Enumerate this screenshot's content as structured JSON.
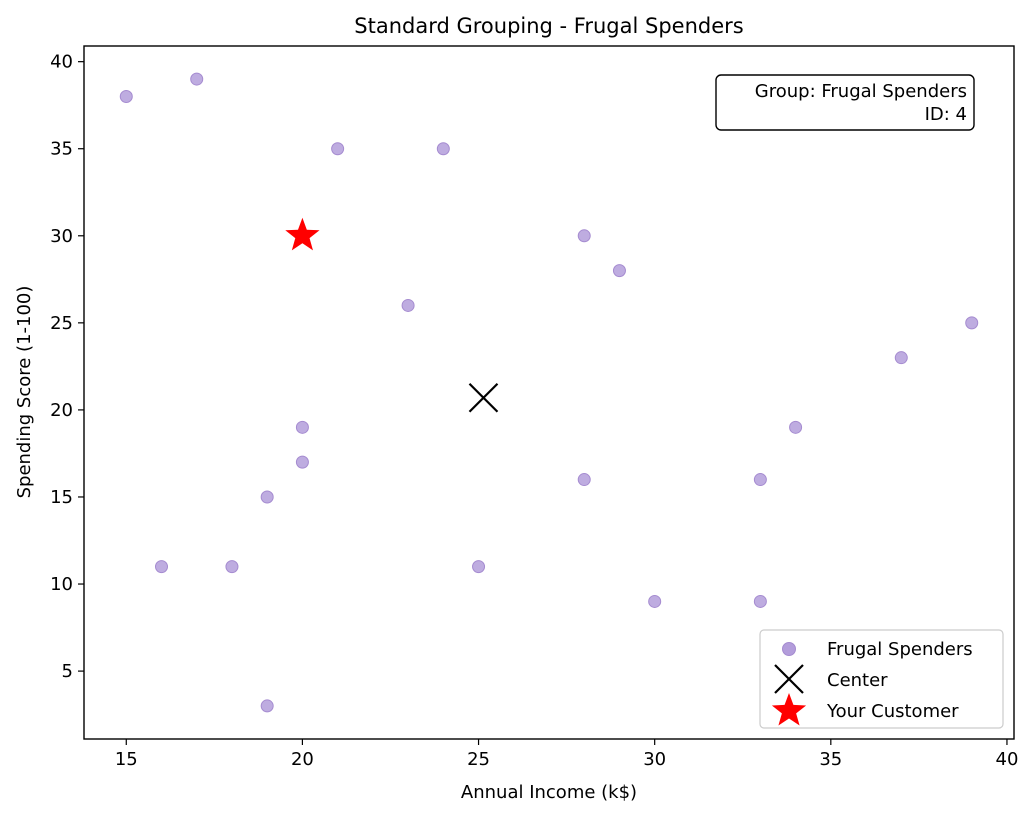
{
  "chart_data": {
    "type": "scatter",
    "title": "Standard Grouping - Frugal Spenders",
    "xlabel": "Annual Income (k$)",
    "ylabel": "Spending Score (1-100)",
    "xlim": [
      13.8,
      40.2
    ],
    "ylim": [
      1.1,
      40.9
    ],
    "xticks": [
      15,
      20,
      25,
      30,
      35,
      40
    ],
    "yticks": [
      5,
      10,
      15,
      20,
      25,
      30,
      35,
      40
    ],
    "grid": false,
    "legend_position": "bottom-right",
    "series": [
      {
        "name": "Frugal Spenders",
        "marker": "circle",
        "color": "#b39ddb",
        "points": [
          {
            "x": 15,
            "y": 38
          },
          {
            "x": 17,
            "y": 39
          },
          {
            "x": 21,
            "y": 35
          },
          {
            "x": 24,
            "y": 35
          },
          {
            "x": 28,
            "y": 30
          },
          {
            "x": 29,
            "y": 28
          },
          {
            "x": 23,
            "y": 26
          },
          {
            "x": 39,
            "y": 25
          },
          {
            "x": 37,
            "y": 23
          },
          {
            "x": 20,
            "y": 19
          },
          {
            "x": 34,
            "y": 19
          },
          {
            "x": 20,
            "y": 17
          },
          {
            "x": 28,
            "y": 16
          },
          {
            "x": 33,
            "y": 16
          },
          {
            "x": 19,
            "y": 15
          },
          {
            "x": 16,
            "y": 11
          },
          {
            "x": 18,
            "y": 11
          },
          {
            "x": 25,
            "y": 11
          },
          {
            "x": 30,
            "y": 9
          },
          {
            "x": 33,
            "y": 9
          },
          {
            "x": 19,
            "y": 3
          }
        ]
      },
      {
        "name": "Center",
        "marker": "x",
        "color": "#000000",
        "points": [
          {
            "x": 25.14,
            "y": 20.7
          }
        ]
      },
      {
        "name": "Your Customer",
        "marker": "star",
        "color": "#ff0000",
        "points": [
          {
            "x": 20,
            "y": 30
          }
        ]
      }
    ],
    "annotation": {
      "line1": "Group: Frugal Spenders",
      "line2": "ID: 4"
    }
  }
}
